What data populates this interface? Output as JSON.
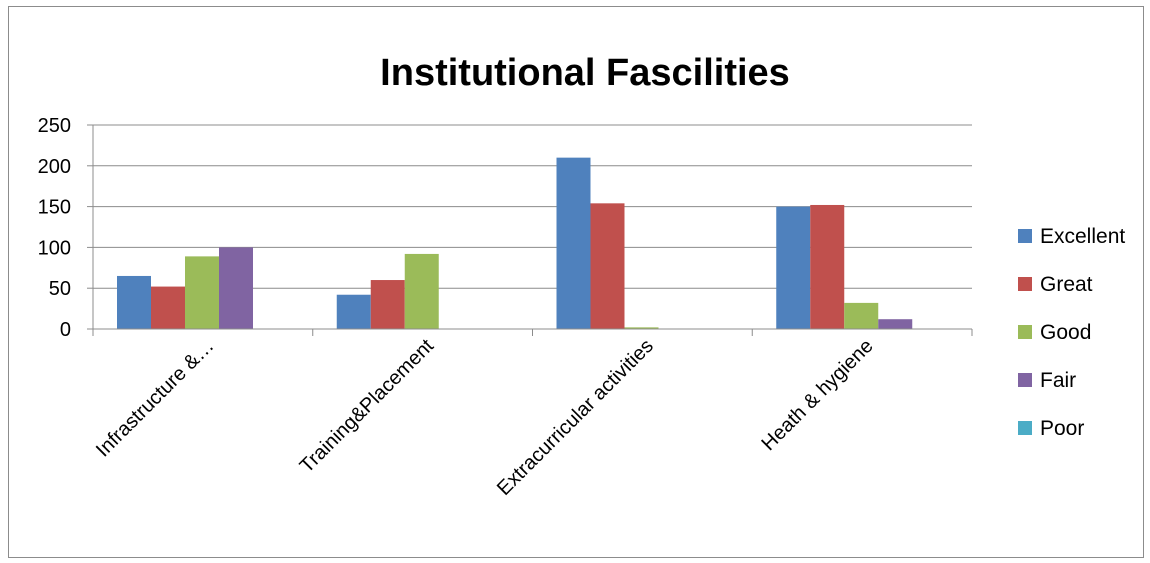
{
  "chart_data": {
    "type": "bar",
    "title": "Institutional Fascilities",
    "xlabel": "",
    "ylabel": "",
    "categories": [
      "Infrastructure &…",
      "Training&Placement",
      "Extracurricular activities",
      "Heath & hygiene"
    ],
    "series": [
      {
        "name": "Excellent",
        "color": "#4f81bd",
        "values": [
          65,
          42,
          210,
          150
        ]
      },
      {
        "name": "Great",
        "color": "#c0504d",
        "values": [
          52,
          60,
          154,
          152
        ]
      },
      {
        "name": "Good",
        "color": "#9bbb59",
        "values": [
          89,
          92,
          2,
          32
        ]
      },
      {
        "name": "Fair",
        "color": "#8064a2",
        "values": [
          100,
          0,
          0,
          12
        ]
      },
      {
        "name": "Poor",
        "color": "#4bacc6",
        "values": [
          0,
          0,
          0,
          0
        ]
      }
    ],
    "ylim": [
      0,
      250
    ],
    "yticks": [
      "0",
      "50",
      "100",
      "150",
      "200",
      "250"
    ],
    "grid": true,
    "legend_position": "right"
  }
}
